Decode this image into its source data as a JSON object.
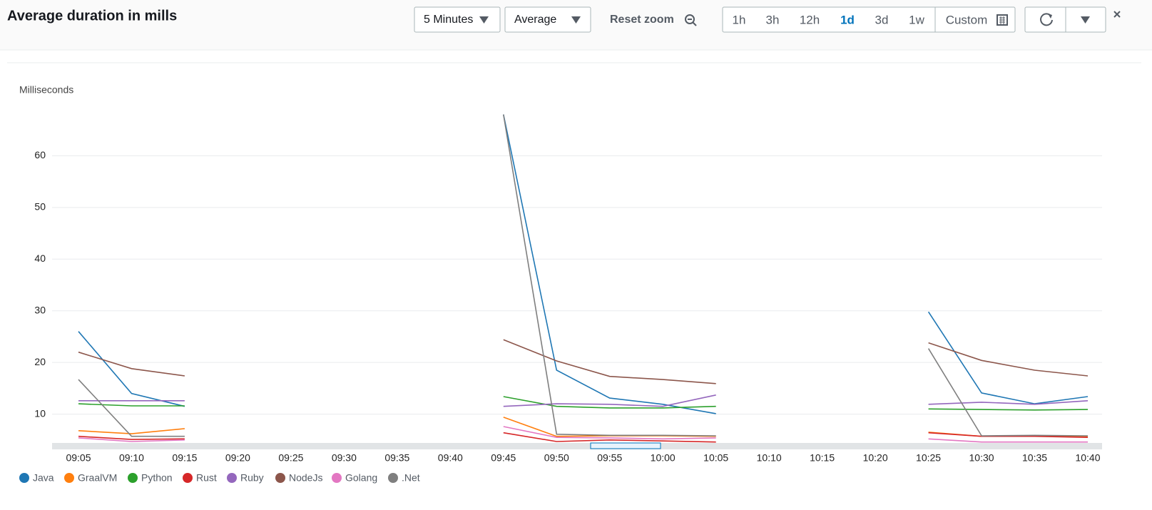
{
  "toolbar": {
    "period": "5 Minutes",
    "statistic": "Average",
    "reset_zoom": "Reset zoom",
    "ranges": [
      "1h",
      "3h",
      "12h",
      "1d",
      "3d",
      "1w",
      "Custom"
    ],
    "active_range_index": 3
  },
  "chart_data": {
    "type": "line",
    "title": "Average duration in mills",
    "y_label": "Milliseconds",
    "categories": [
      "09:05",
      "09:10",
      "09:15",
      "09:20",
      "09:25",
      "09:30",
      "09:35",
      "09:40",
      "09:45",
      "09:50",
      "09:55",
      "10:00",
      "10:05",
      "10:10",
      "10:15",
      "10:20",
      "10:25",
      "10:30",
      "10:35",
      "10:40"
    ],
    "ylim": [
      4.4,
      70
    ],
    "yticks": [
      10,
      20,
      30,
      40,
      50,
      60
    ],
    "grid": true,
    "legend": "bottom",
    "series": [
      {
        "name": "Java",
        "color": "#1f77b4",
        "values": [
          26,
          14,
          11.5,
          null,
          null,
          null,
          null,
          null,
          68,
          18.5,
          13.1,
          11.9,
          10.1,
          null,
          null,
          null,
          29.8,
          14.1,
          12,
          13.4
        ]
      },
      {
        "name": "GraalVM",
        "color": "#ff7f0e",
        "values": [
          6.8,
          6.2,
          7.2,
          null,
          null,
          null,
          null,
          null,
          9.4,
          5.7,
          5.8,
          5.8,
          5.7,
          null,
          null,
          null,
          6.5,
          5.7,
          5.8,
          5.7
        ]
      },
      {
        "name": "Python",
        "color": "#2ca02c",
        "values": [
          12,
          11.6,
          11.6,
          null,
          null,
          null,
          null,
          null,
          13.4,
          11.5,
          11.2,
          11.2,
          11.5,
          null,
          null,
          null,
          11,
          10.9,
          10.8,
          10.9
        ]
      },
      {
        "name": "Rust",
        "color": "#d62728",
        "values": [
          5.7,
          5.1,
          5.2,
          null,
          null,
          null,
          null,
          null,
          6.4,
          4.7,
          5,
          4.8,
          4.6,
          null,
          null,
          null,
          6.4,
          5.7,
          5.7,
          5.5
        ]
      },
      {
        "name": "Ruby",
        "color": "#9467bd",
        "values": [
          12.6,
          12.6,
          12.6,
          null,
          null,
          null,
          null,
          null,
          11.5,
          12,
          11.9,
          11.5,
          13.7,
          null,
          null,
          null,
          11.9,
          12.3,
          11.9,
          12.6
        ]
      },
      {
        "name": "NodeJs",
        "color": "#8c564b",
        "values": [
          22,
          18.8,
          17.4,
          null,
          null,
          null,
          null,
          null,
          24.4,
          20.3,
          17.3,
          16.7,
          15.9,
          null,
          null,
          null,
          23.8,
          20.4,
          18.5,
          17.4
        ]
      },
      {
        "name": "Golang",
        "color": "#e377c2",
        "values": [
          5.4,
          4.7,
          5,
          null,
          null,
          null,
          null,
          null,
          7.6,
          5.5,
          5.4,
          5.2,
          5.4,
          null,
          null,
          null,
          5.2,
          4.6,
          4.6,
          4.6
        ]
      },
      {
        "name": ".Net",
        "color": "#7f7f7f",
        "values": [
          16.7,
          5.7,
          5.7,
          null,
          null,
          null,
          null,
          null,
          68,
          6.1,
          5.9,
          5.9,
          5.8,
          null,
          null,
          null,
          22.7,
          5.8,
          5.9,
          5.8
        ]
      }
    ]
  }
}
